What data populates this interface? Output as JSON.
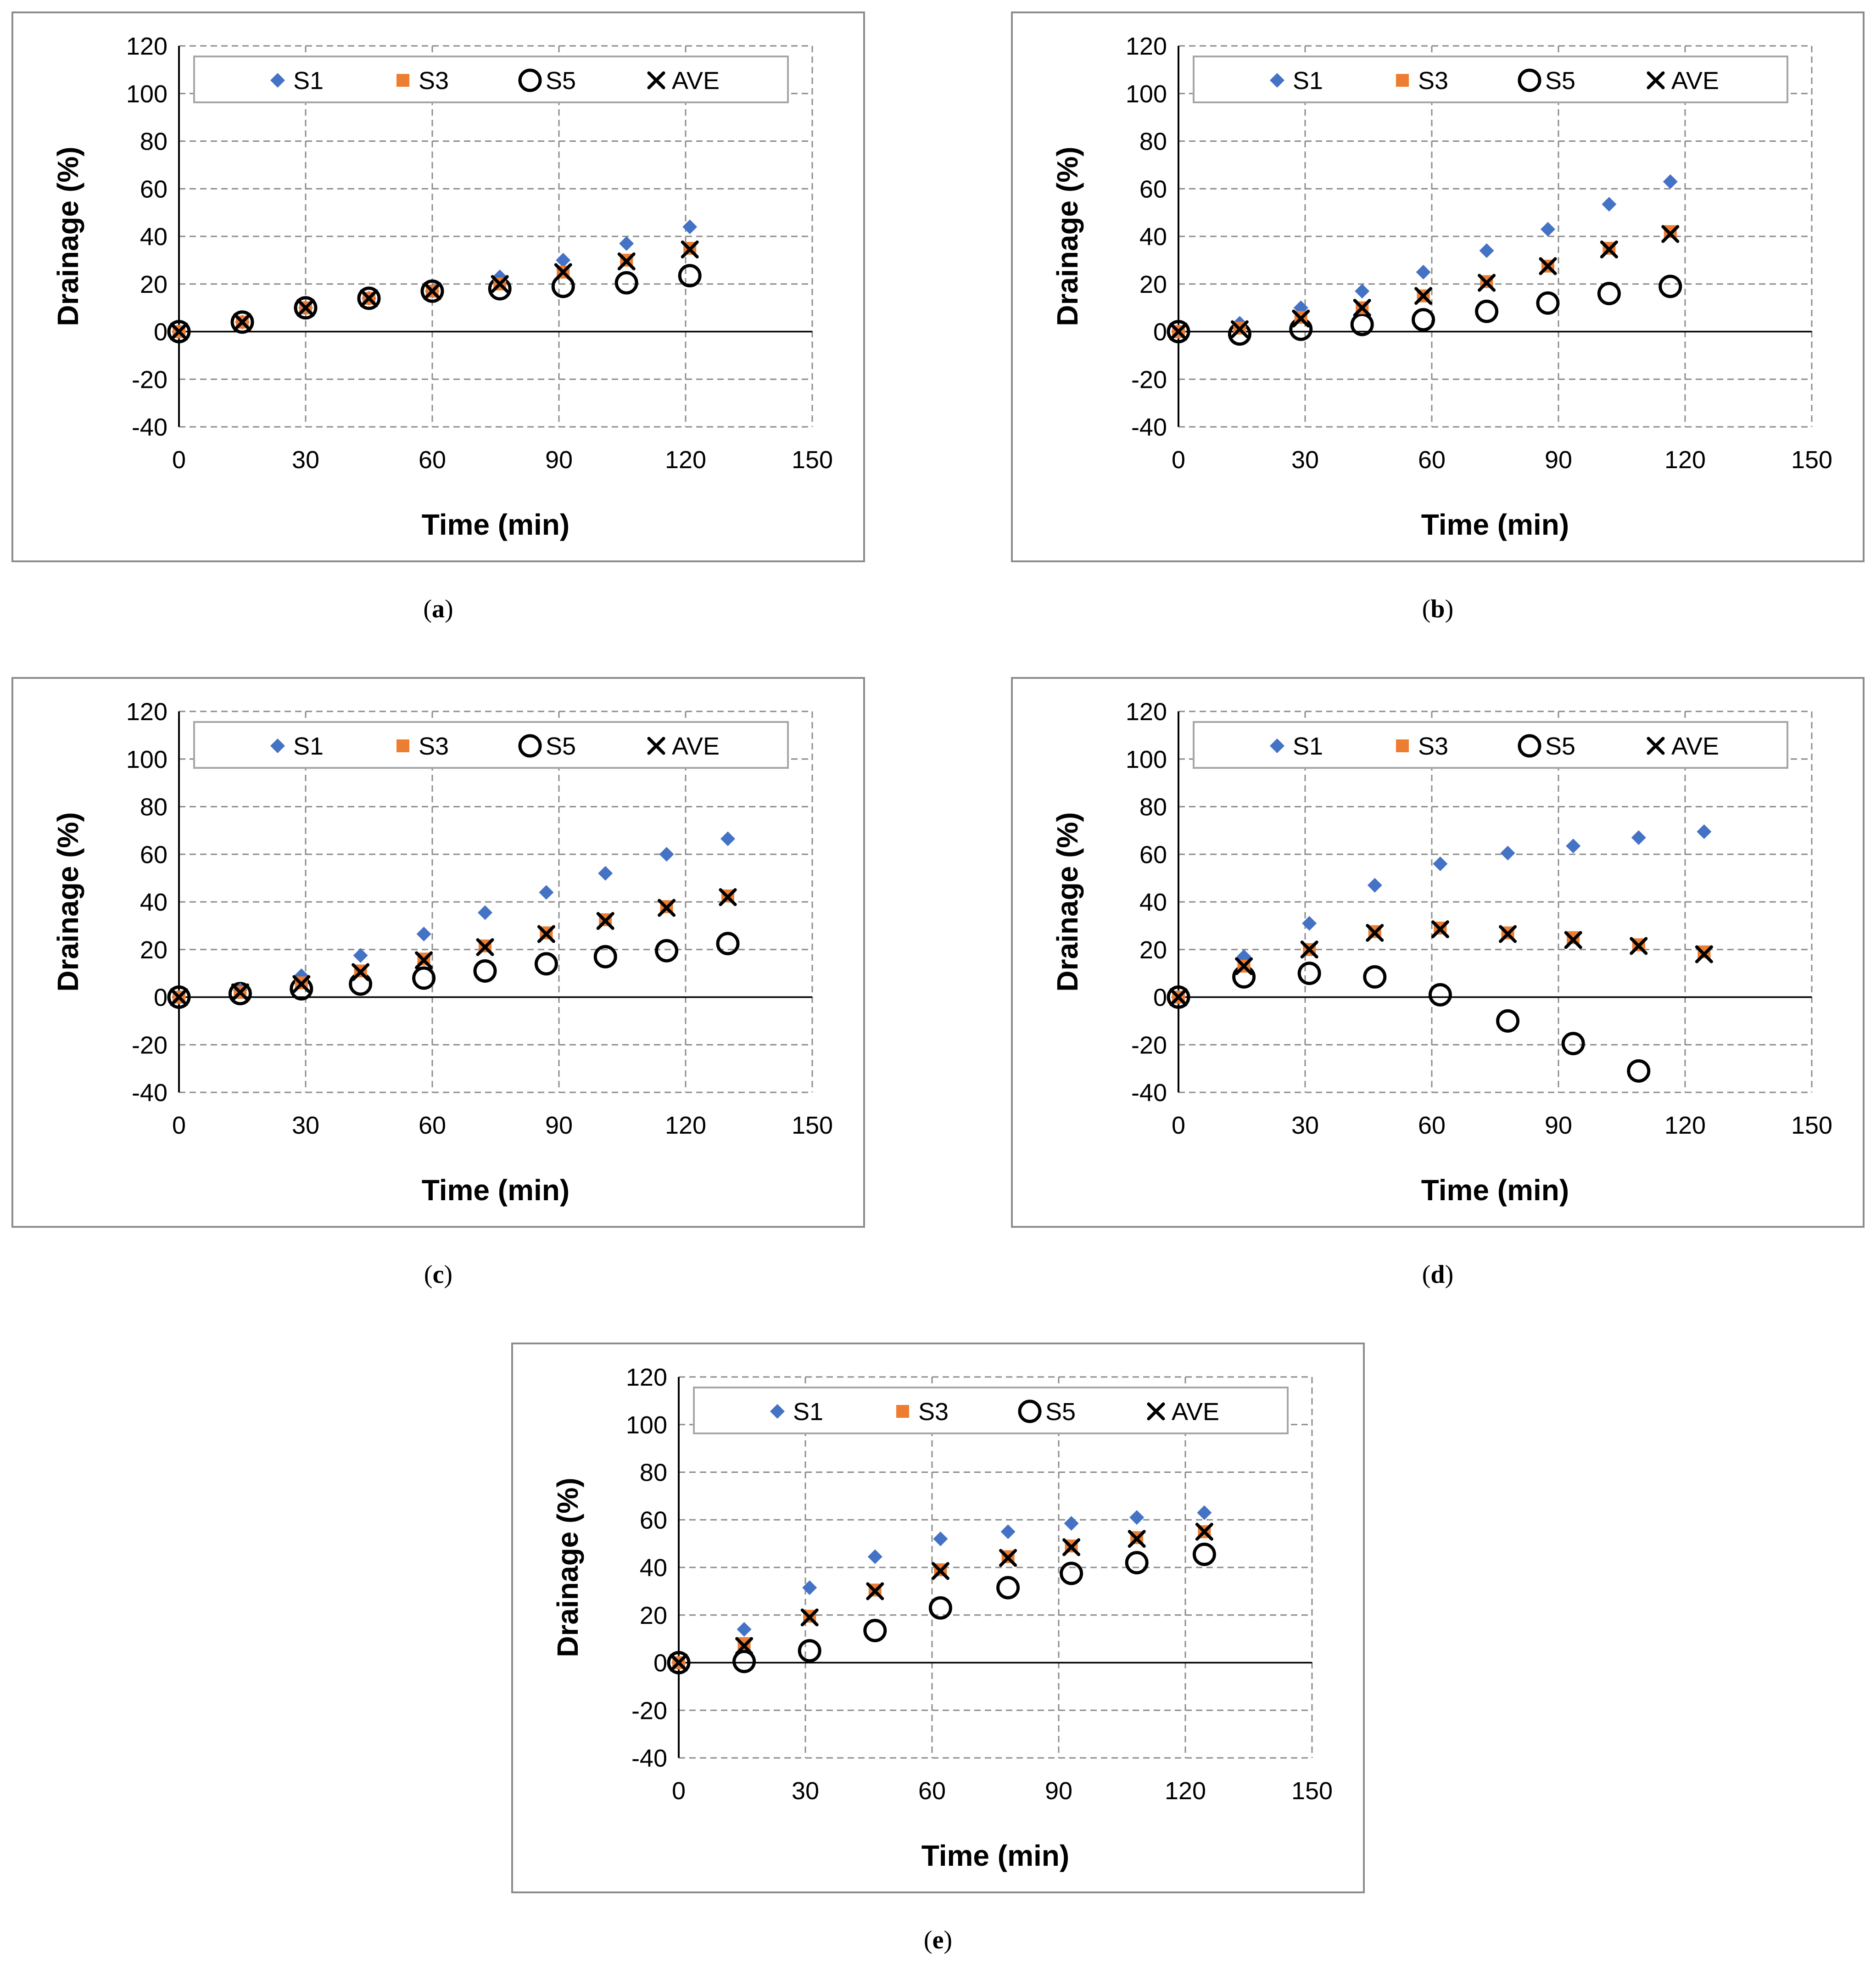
{
  "legend_colors": {
    "S1": "#4472C4",
    "S3": "#ED7D31",
    "S5": "#000000",
    "AVE": "#000000"
  },
  "chart_data": [
    {
      "id": "a",
      "type": "scatter",
      "caption": "a",
      "xlabel": "Time (min)",
      "ylabel": "Drainage (%)",
      "xlim": [
        0,
        150
      ],
      "ylim": [
        -40,
        120
      ],
      "xticks": [
        "0",
        "30",
        "60",
        "90",
        "120",
        "150"
      ],
      "yticks": [
        "-40",
        "-20",
        "0",
        "20",
        "40",
        "60",
        "80",
        "100",
        "120"
      ],
      "legend": [
        "S1",
        "S3",
        "S5",
        "AVE"
      ],
      "x": [
        0,
        15,
        30,
        45,
        60,
        76,
        91,
        106,
        121
      ],
      "series": [
        {
          "name": "S1",
          "values": [
            0,
            4,
            10,
            14,
            17,
            23,
            30,
            37,
            44
          ]
        },
        {
          "name": "S3",
          "values": [
            0,
            4,
            10,
            14,
            17,
            20,
            25,
            30,
            35
          ]
        },
        {
          "name": "S5",
          "values": [
            0,
            4,
            10,
            14,
            17,
            18,
            19,
            20.5,
            23.5
          ]
        },
        {
          "name": "AVE",
          "values": [
            0,
            4,
            10,
            14,
            17,
            20,
            25,
            29.5,
            34.5
          ]
        }
      ]
    },
    {
      "id": "b",
      "type": "scatter",
      "caption": "b",
      "xlabel": "Time (min)",
      "ylabel": "Drainage (%)",
      "xlim": [
        0,
        150
      ],
      "ylim": [
        -40,
        120
      ],
      "xticks": [
        "0",
        "30",
        "60",
        "90",
        "120",
        "150"
      ],
      "yticks": [
        "-40",
        "-20",
        "0",
        "20",
        "40",
        "60",
        "80",
        "100",
        "120"
      ],
      "legend": [
        "S1",
        "S3",
        "S5",
        "AVE"
      ],
      "x": [
        0,
        14.5,
        29,
        43.5,
        58,
        73,
        87.5,
        102,
        116.5
      ],
      "series": [
        {
          "name": "S1",
          "values": [
            0,
            3.5,
            10,
            17,
            25,
            34,
            43,
            53.5,
            63
          ]
        },
        {
          "name": "S3",
          "values": [
            0,
            1.5,
            6,
            10,
            15,
            21,
            27.5,
            35,
            42
          ]
        },
        {
          "name": "S5",
          "values": [
            0,
            -1,
            1,
            3,
            5,
            8.5,
            12,
            16,
            19
          ]
        },
        {
          "name": "AVE",
          "values": [
            0,
            1,
            5.5,
            10,
            15,
            20.5,
            27.5,
            34.5,
            41
          ]
        }
      ]
    },
    {
      "id": "c",
      "type": "scatter",
      "caption": "c",
      "xlabel": "Time (min)",
      "ylabel": "Drainage (%)",
      "xlim": [
        0,
        150
      ],
      "ylim": [
        -40,
        120
      ],
      "xticks": [
        "0",
        "30",
        "60",
        "90",
        "120",
        "150"
      ],
      "yticks": [
        "-40",
        "-20",
        "0",
        "20",
        "40",
        "60",
        "80",
        "100",
        "120"
      ],
      "legend": [
        "S1",
        "S3",
        "S5",
        "AVE"
      ],
      "x": [
        0,
        14.5,
        29,
        43,
        58,
        72.5,
        87,
        101,
        115.5,
        130
      ],
      "series": [
        {
          "name": "S1",
          "values": [
            0,
            3,
            9,
            17.5,
            26.5,
            35.5,
            44,
            52,
            60,
            66.5
          ]
        },
        {
          "name": "S3",
          "values": [
            0,
            2,
            6,
            11,
            16,
            21.5,
            27,
            32.5,
            38,
            42.5
          ]
        },
        {
          "name": "S5",
          "values": [
            0,
            1.5,
            3.5,
            5.5,
            8,
            11,
            14,
            17,
            19.5,
            22.5
          ]
        },
        {
          "name": "AVE",
          "values": [
            0,
            2,
            5.5,
            10.5,
            15.5,
            21,
            26.5,
            32,
            37.5,
            42
          ]
        }
      ]
    },
    {
      "id": "d",
      "type": "scatter",
      "caption": "d",
      "xlabel": "Time (min)",
      "ylabel": "Drainage (%)",
      "xlim": [
        0,
        150
      ],
      "ylim": [
        -40,
        120
      ],
      "xticks": [
        "0",
        "30",
        "60",
        "90",
        "120",
        "150"
      ],
      "yticks": [
        "-40",
        "-20",
        "0",
        "20",
        "40",
        "60",
        "80",
        "100",
        "120"
      ],
      "legend": [
        "S1",
        "S3",
        "S5",
        "AVE"
      ],
      "x": [
        0,
        15.5,
        31,
        46.5,
        62,
        78,
        93.5,
        109,
        124.5
      ],
      "series": [
        {
          "name": "S1",
          "values": [
            0,
            17,
            31,
            47,
            56,
            60.5,
            63.5,
            67,
            69.5
          ]
        },
        {
          "name": "S3",
          "values": [
            0,
            13,
            20,
            27.5,
            29,
            27,
            25,
            22,
            19
          ]
        },
        {
          "name": "S5",
          "values": [
            0,
            8.5,
            10,
            8.5,
            1,
            -10,
            -19.5,
            -31
          ]
        },
        {
          "name": "AVE",
          "values": [
            0,
            13,
            20,
            27,
            28.5,
            26.5,
            24,
            21.5,
            18
          ]
        }
      ]
    },
    {
      "id": "e",
      "type": "scatter",
      "caption": "e",
      "xlabel": "Time (min)",
      "ylabel": "Drainage (%)",
      "xlim": [
        0,
        150
      ],
      "ylim": [
        -40,
        120
      ],
      "xticks": [
        "0",
        "30",
        "60",
        "90",
        "120",
        "150"
      ],
      "yticks": [
        "-40",
        "-20",
        "0",
        "20",
        "40",
        "60",
        "80",
        "100",
        "120"
      ],
      "legend": [
        "S1",
        "S3",
        "S5",
        "AVE"
      ],
      "x": [
        0,
        15.5,
        31,
        46.5,
        62,
        78,
        93,
        108.5,
        124.5
      ],
      "series": [
        {
          "name": "S1",
          "values": [
            0,
            14,
            31.5,
            44.5,
            52,
            55,
            58.5,
            61,
            63
          ]
        },
        {
          "name": "S3",
          "values": [
            0,
            8,
            19.5,
            30.5,
            39,
            44.5,
            49,
            52.5,
            55
          ]
        },
        {
          "name": "S5",
          "values": [
            0,
            0.5,
            5,
            13.5,
            23,
            31.5,
            37.5,
            42,
            45.5
          ]
        },
        {
          "name": "AVE",
          "values": [
            0,
            7,
            19,
            30,
            38.5,
            44,
            48.5,
            52,
            55
          ]
        }
      ]
    }
  ]
}
